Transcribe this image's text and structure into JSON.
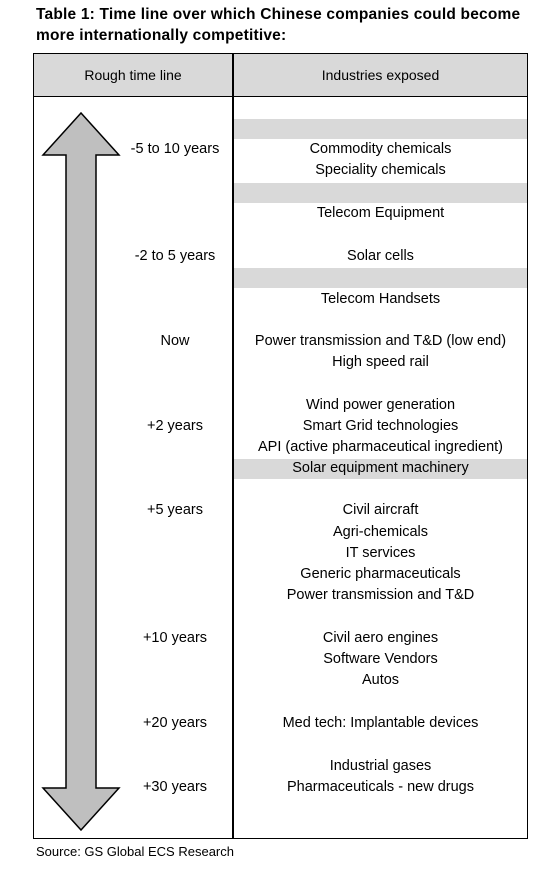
{
  "title": "Table 1: Time line over which Chinese companies could become more internationally competitive:",
  "headers": {
    "timeline": "Rough time line",
    "industries": "Industries exposed"
  },
  "timeline": [
    {
      "label": "-5 to 10 years"
    },
    {
      "label": "-2 to 5 years"
    },
    {
      "label": "Now"
    },
    {
      "label": "+2 years"
    },
    {
      "label": "+5 years"
    },
    {
      "label": "+10 years"
    },
    {
      "label": "+20 years"
    },
    {
      "label": "+30 years"
    }
  ],
  "industries": [
    "Commodity chemicals",
    "Speciality chemicals",
    "Telecom Equipment",
    "Solar cells",
    "Telecom Handsets",
    "Power transmission and T&D (low end)",
    "High speed rail",
    "Wind power generation",
    "Smart Grid technologies",
    "API (active pharmaceutical ingredient)",
    "Solar equipment machinery",
    "Civil aircraft",
    "Agri-chemicals",
    "IT services",
    "Generic pharmaceuticals",
    "Power transmission and T&D",
    "Civil aero engines",
    "Software Vendors",
    "Autos",
    "Med tech: Implantable devices",
    "Industrial gases",
    "Pharmaceuticals - new drugs"
  ],
  "source": "Source: GS Global ECS Research",
  "colors": {
    "header_fill": "#d9d9d9",
    "arrow_fill": "#bfbfbf",
    "band_fill": "#d9d9d9"
  }
}
